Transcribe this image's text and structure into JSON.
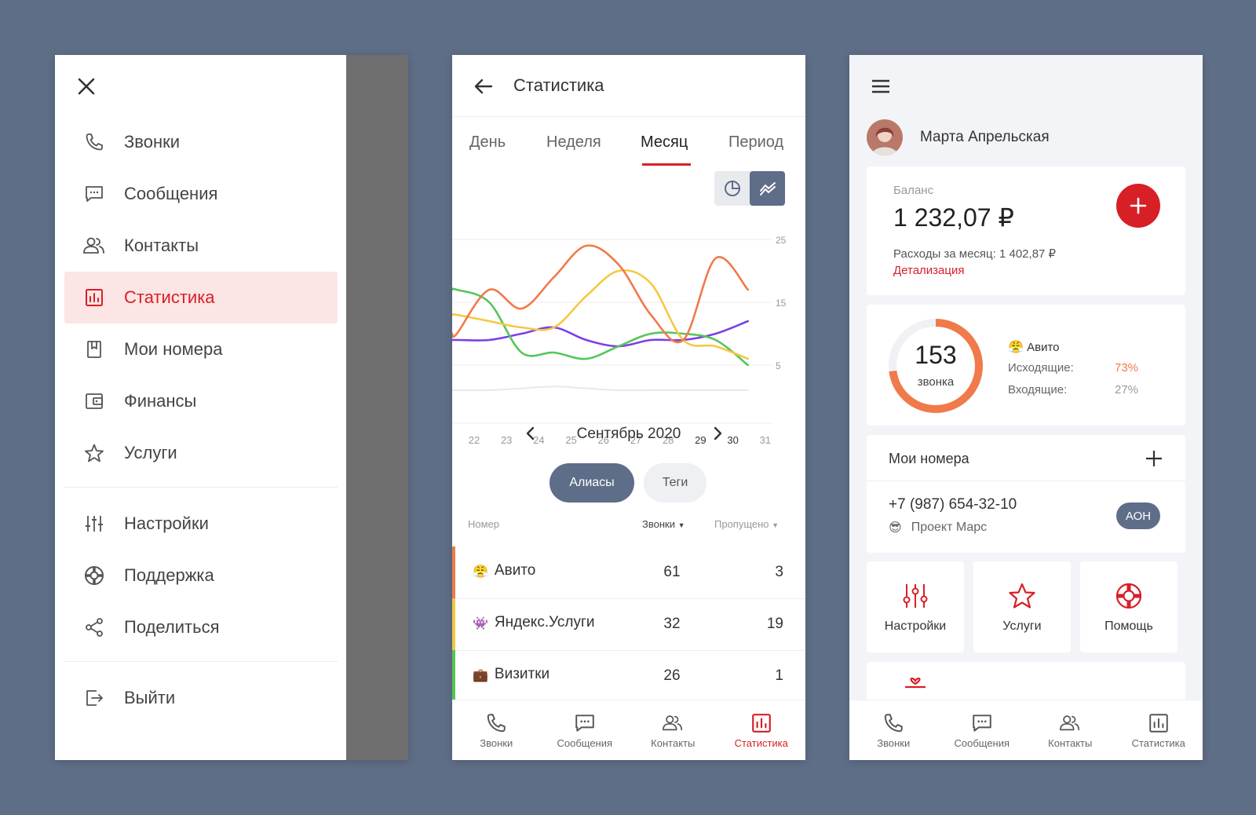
{
  "drawer": {
    "items": [
      {
        "label": "Звонки",
        "icon": "phone-icon"
      },
      {
        "label": "Сообщения",
        "icon": "message-icon"
      },
      {
        "label": "Контакты",
        "icon": "contacts-icon"
      },
      {
        "label": "Статистика",
        "icon": "chart-icon",
        "active": true
      },
      {
        "label": "Мои номера",
        "icon": "bookmark-icon"
      },
      {
        "label": "Финансы",
        "icon": "wallet-icon"
      },
      {
        "label": "Услуги",
        "icon": "star-icon"
      }
    ],
    "settings_items": [
      {
        "label": "Настройки",
        "icon": "sliders-icon"
      },
      {
        "label": "Поддержка",
        "icon": "lifebuoy-icon"
      },
      {
        "label": "Поделиться",
        "icon": "share-icon"
      }
    ],
    "logout": {
      "label": "Выйти",
      "icon": "logout-icon"
    }
  },
  "stats": {
    "title": "Статистика",
    "tabs": [
      "День",
      "Неделя",
      "Месяц",
      "Период"
    ],
    "active_tab": "Месяц",
    "month_label": "Сентябрь 2020",
    "filters": {
      "selected": "Алиасы",
      "other": "Теги"
    },
    "table": {
      "headers": {
        "number": "Номер",
        "calls": "Звонки",
        "missed": "Пропущено"
      },
      "rows": [
        {
          "emoji": "😤",
          "name": "Авито",
          "calls": "61",
          "missed": "3",
          "color": "#f07a4a"
        },
        {
          "emoji": "👾",
          "name": "Яндекс.Услуги",
          "calls": "32",
          "missed": "19",
          "color": "#f5c842"
        },
        {
          "emoji": "💼",
          "name": "Визитки",
          "calls": "26",
          "missed": "1",
          "color": "#55c55a"
        }
      ]
    }
  },
  "chart_data": {
    "type": "line",
    "x": [
      22,
      23,
      24,
      25,
      26,
      27,
      28,
      29,
      30,
      31
    ],
    "y_ticks": [
      5,
      15,
      25
    ],
    "ylim": [
      0,
      25
    ],
    "series": [
      {
        "color": "#f07a4a",
        "values": [
          10,
          17,
          14,
          19,
          24,
          21,
          13,
          9,
          22,
          17
        ]
      },
      {
        "color": "#f5c842",
        "values": [
          13,
          12,
          11,
          11,
          16,
          20,
          18,
          9,
          8,
          6
        ]
      },
      {
        "color": "#55c55a",
        "values": [
          17,
          15,
          7,
          7,
          6,
          8,
          10,
          10,
          9,
          5
        ]
      },
      {
        "color": "#7c3fe6",
        "values": [
          9,
          9,
          10,
          11,
          9,
          8,
          9,
          9,
          10,
          12
        ]
      },
      {
        "color": "#e6e8ec",
        "values": [
          1,
          1,
          1.3,
          1.6,
          1.3,
          1,
          1,
          1,
          1,
          1
        ]
      }
    ]
  },
  "profile": {
    "name": "Марта Апрельская",
    "balance_label": "Баланс",
    "balance": "1 232,07 ₽",
    "expenses": "Расходы за месяц: 1 402,87 ₽",
    "details_link": "Детализация",
    "calls_count": "153",
    "calls_label": "звонка",
    "calls_progress": 0.73,
    "source_emoji": "😤",
    "source_name": "Авито",
    "outgoing_label": "Исходящие:",
    "outgoing_value": "73%",
    "incoming_label": "Входящие:",
    "incoming_value": "27%",
    "numbers_title": "Мои номера",
    "phone": "+7 (987) 654-32-10",
    "project_emoji": "😎",
    "project": "Проект Марс",
    "aon_badge": "АОН",
    "tiles": [
      {
        "label": "Настройки",
        "icon": "sliders-icon"
      },
      {
        "label": "Услуги",
        "icon": "star-icon"
      },
      {
        "label": "Помощь",
        "icon": "lifebuoy-icon"
      }
    ]
  },
  "bottom_nav": {
    "items": [
      "Звонки",
      "Сообщения",
      "Контакты",
      "Статистика"
    ]
  },
  "colors": {
    "accent": "#d71f26",
    "slate": "#5e6d88",
    "background": "#5f6e87"
  }
}
